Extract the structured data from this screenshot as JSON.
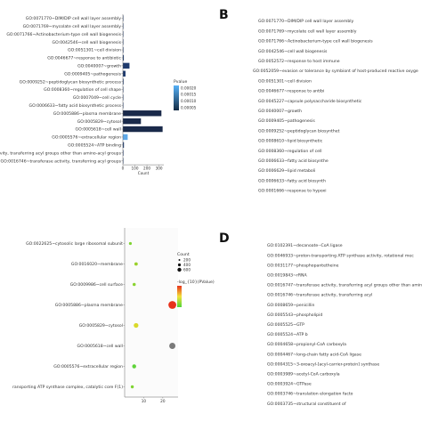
{
  "panels": {
    "b_letter": "B",
    "d_letter": "D"
  },
  "chart_data": [
    {
      "type": "bar",
      "orientation": "horizontal",
      "panel": "A",
      "categories": [
        "GO:0071770~DIM/DIP cell wall layer assembly",
        "GO:0071769~mycolate cell wall layer assembly",
        "GO:0071766~Actinobacterium-type cell wall biogenesis",
        "GO:0042546~cell wall biogenesis",
        "GO:0051301~cell division",
        "GO:0046677~response to antibiotic",
        "GO:0040007~growth",
        "GO:0009405~pathogenesis",
        "GO:0009252~peptidoglycan biosynthetic process",
        "GO:0008360~regulation of cell shape",
        "GO:0007049~cell cycle",
        "GO:0006633~fatty acid biosynthetic process",
        "GO:0005886~plasma membrane",
        "GO:0005829~cytosol",
        "GO:0005618~cell wall",
        "GO:0005576~extracellular region",
        "GO:0005524~ATP binding",
        "activity, transferring acyl groups other than amino-acyl groups",
        "GO:0016746~transferase activity, transferring acyl groups"
      ],
      "values": [
        2,
        2,
        2,
        3,
        5,
        8,
        55,
        22,
        6,
        4,
        4,
        3,
        320,
        150,
        330,
        40,
        9,
        5,
        4
      ],
      "pvalue_colors": [
        "#1f3b6e",
        "#1f3b6e",
        "#1f3b6e",
        "#1f3b6e",
        "#1f3b6e",
        "#1f3b6e",
        "#1f3b6e",
        "#1f3b6e",
        "#1f3b6e",
        "#1f3b6e",
        "#1f3b6e",
        "#1f3b6e",
        "#1a2a4a",
        "#1a2a4a",
        "#1a2a4a",
        "#5fa9e8",
        "#1f3b6e",
        "#1f3b6e",
        "#1f3b6e"
      ],
      "xlabel": "Count",
      "xticks": [
        "0",
        "100",
        "200",
        "300"
      ],
      "xlim": [
        0,
        340
      ],
      "legend_title": "Pvalue",
      "legend_ticks": [
        "0.00020",
        "0.00015",
        "0.00010",
        "0.00005"
      ],
      "legend_colors": [
        "#56b1f7",
        "#132b43"
      ]
    },
    {
      "type": "bar",
      "orientation": "horizontal",
      "panel": "B",
      "categories": [
        "GO:0071770~DIM/DIP cell wall layer assembly",
        "GO:0071769~mycolate cell wall layer assembly",
        "GO:0071766~Actinobacterium-type cell wall biogenesis",
        "GO:0042546~cell wall biogenesis",
        "GO:0052572~response to host immune",
        "GO:0052059~evasion or tolerance by symbiont of host-produced reactive oxyge",
        "GO:0051301~cell division",
        "GO:0046677~response to antibi",
        "GO:0045227~capsule polysaccharide biosynthetic",
        "GO:0040007~growth",
        "GO:0009405~pathogenesis",
        "GO:0009252~peptidoglycan biosynthet",
        "GO:0008610~lipid biosynthetic",
        "GO:0008360~regulation of cell",
        "GO:0006633~fatty acid biosynthe",
        "GO:0006629~lipid metaboli",
        "GO:0006633~fatty acid biosynth",
        "GO:0001666~response to hypoxi"
      ]
    },
    {
      "type": "scatter",
      "panel": "C",
      "categories": [
        "GO:0022625~cytosolic large ribosomal subunit",
        "GO:0016020~membrane",
        "GO:0009986~cell surface",
        "GO:0005886~plasma membrane",
        "GO:0005829~cytosol",
        "GO:0005618~cell wall",
        "GO:0005576~extracellular region",
        "ransporting ATP synthase complex, catalytic core F(1)"
      ],
      "x": [
        3,
        6,
        5,
        25,
        6,
        25,
        5,
        4
      ],
      "size": [
        10,
        30,
        20,
        600,
        120,
        300,
        60,
        15
      ],
      "colors": [
        "#7fd433",
        "#9ad12a",
        "#8ad431",
        "#e8321c",
        "#d9d92a",
        "#7a7a7a",
        "#5fd43a",
        "#7fd433"
      ],
      "xticks": [
        "10",
        "20"
      ],
      "xlim": [
        0,
        28
      ],
      "legend_count_title": "Count",
      "legend_count_ticks": [
        "200",
        "400",
        "600"
      ],
      "legend_color_title": "-log_{10}(PValue)",
      "legend_color_ticks": [
        "",
        ""
      ],
      "legend_colors": [
        "#e8321c",
        "#f2e23a",
        "#4fd63a"
      ]
    },
    {
      "type": "scatter",
      "panel": "D",
      "categories": [
        "GO:0102391~decanoate--CoA ligase",
        "GO:0046933~proton-transporting ATP synthase activity, rotational mec",
        "GO:0031177~phosphopantetheine",
        "GO:0019843~rRNA",
        "GO:0016747~transferase activity, transferring acyl groups other than amino-acyl",
        "GO:0016746~transferase activity, transferring acyl",
        "GO:0008659~penicillin",
        "GO:0005543~phospholipid",
        "GO:0005525~GTP",
        "GO:0005524~ATP b",
        "GO:0004658~propionyl-CoA carboxyla",
        "GO:0004467~long-chain fatty acid-CoA ligase",
        "GO:0004315~3-oxoacyl-[acyl-carrier-protein] synthase",
        "GO:0003989~acetyl-CoA carboxyla",
        "GO:0003924~GTPase",
        "GO:0003746~translation elongation facto",
        "GO:0003735~structural constituent of"
      ]
    }
  ]
}
